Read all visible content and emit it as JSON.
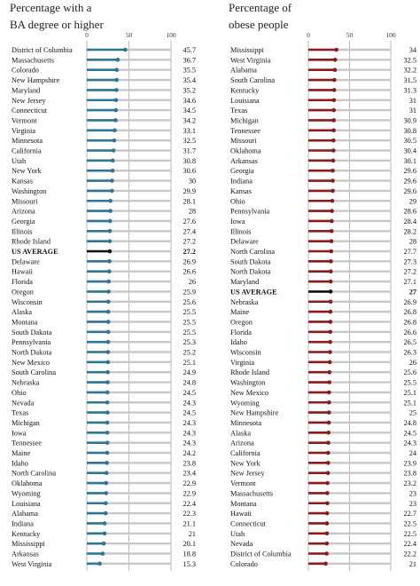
{
  "chart_data": [
    {
      "type": "bar",
      "title": "Percentage with a BA degree or higher",
      "title_lines": [
        "Percentage with a",
        "BA degree or higher"
      ],
      "xlim": [
        0,
        100
      ],
      "ticks": [
        0,
        50,
        100
      ],
      "colors": {
        "bar": "#2e7596",
        "average": "#111111",
        "track": "#c8c8c8"
      },
      "average_label": "US AVERAGE",
      "categories": [
        "District of Columbia",
        "Massachusetts",
        "Colorado",
        "New Hampshire",
        "Maryland",
        "New Jersey",
        "Connecticut",
        "Vermont",
        "Virginia",
        "Minnesota",
        "California",
        "Utah",
        "New York",
        "Kansas",
        "Washington",
        "Missouri",
        "Arizona",
        "Georgia",
        "Illinois",
        "Rhode Island",
        "US AVERAGE",
        "Delaware",
        "Hawaii",
        "Florida",
        "Oregon",
        "Wisconsin",
        "Alaska",
        "Montana",
        "South Dakota",
        "Pennsylvania",
        "North Dakota",
        "New Mexico",
        "South Carolina",
        "Nebraska",
        "Ohio",
        "Nevada",
        "Texas",
        "Michigan",
        "Iowa",
        "Tennessee",
        "Maine",
        "Idaho",
        "North Carolina",
        "Oklahoma",
        "Wyoming",
        "Louisiana",
        "Alabama",
        "Indiana",
        "Kentucky",
        "Mississippi",
        "Arkansas",
        "West Virginia"
      ],
      "values": [
        45.7,
        36.7,
        35.5,
        35.4,
        35.2,
        34.6,
        34.5,
        34.2,
        33.1,
        32.5,
        31.7,
        30.8,
        30.6,
        30,
        29.9,
        28.1,
        28,
        27.6,
        27.4,
        27.2,
        27.2,
        26.9,
        26.6,
        26,
        25.9,
        25.6,
        25.5,
        25.5,
        25.5,
        25.3,
        25.2,
        25.1,
        24.9,
        24.8,
        24.5,
        24.3,
        24.5,
        24.3,
        24.3,
        24.3,
        24.2,
        23.8,
        23.4,
        22.9,
        22.9,
        22.4,
        22.3,
        21.1,
        21,
        20.1,
        18.8,
        15.3
      ]
    },
    {
      "type": "bar",
      "title": "Percentage of obese people",
      "title_lines": [
        "Percentage of",
        "obese people"
      ],
      "xlim": [
        0,
        100
      ],
      "ticks": [
        0,
        50,
        100
      ],
      "colors": {
        "bar": "#8b1c1c",
        "average": "#111111",
        "track": "#c8c8c8"
      },
      "average_label": "US AVERAGE",
      "categories": [
        "Mississippi",
        "West Virginia",
        "Alabama",
        "South Carolina",
        "Kentucky",
        "Louisiana",
        "Texas",
        "Michigan",
        "Tennessee",
        "Missouri",
        "Oklahoma",
        "Arkansas",
        "Georgia",
        "Indiana",
        "Kansas",
        "Ohio",
        "Pennsylvania",
        "Iowa",
        "Illinois",
        "Delaware",
        "North Carolina",
        "South Dakota",
        "North Dakota",
        "Maryland",
        "US AVERAGE",
        "Nebraska",
        "Maine",
        "Oregon",
        "Florida",
        "Idaho",
        "Wisconsin",
        "Virginia",
        "Rhode Island",
        "Washington",
        "New Mexico",
        "Wyoming",
        "New Hampshire",
        "Minnesota",
        "Alaska",
        "Arizona",
        "California",
        "New York",
        "New Jersey",
        "Vermont",
        "Massachusetts",
        "Montana",
        "Hawaii",
        "Connecticut",
        "Utah",
        "Nevada",
        "District of Columbia",
        "Colorado"
      ],
      "values": [
        34,
        32.5,
        32.2,
        31.5,
        31.3,
        31,
        31,
        30.9,
        30.8,
        30.5,
        30.4,
        30.1,
        29.6,
        29.6,
        29.6,
        29,
        28.6,
        28.4,
        28.2,
        28,
        27.7,
        27.3,
        27.2,
        27.1,
        27.0,
        26.9,
        26.8,
        26.8,
        26.6,
        26.5,
        26.3,
        26,
        25.6,
        25.5,
        25.1,
        25.1,
        25,
        24.8,
        24.5,
        24.3,
        24,
        23.9,
        23.8,
        23.2,
        23,
        23,
        22.7,
        22.5,
        22.5,
        22.4,
        22.2,
        21
      ]
    }
  ]
}
